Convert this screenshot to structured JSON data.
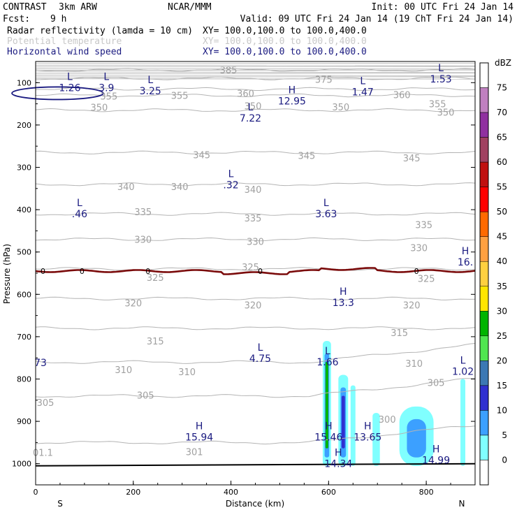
{
  "header": {
    "model": "CONTRAST",
    "run": "3km ARW",
    "org": "NCAR/MMM",
    "init": "Init: 00 UTC Fri 24 Jan 14",
    "fcst_label": "Fcst:",
    "fcst_value": "9 h",
    "valid": "Valid: 09 UTC Fri 24 Jan 14 (19 ChT Fri 24 Jan 14)",
    "fields": [
      {
        "name": "Radar reflectivity (lamda = 10 cm)",
        "xy": "XY= 100.0,100.0 to 100.0,400.0",
        "color": "#000000"
      },
      {
        "name": "Potential temperature",
        "xy": "XY= 100.0,100.0 to 100.0,400.0",
        "color": "#c8c8c8"
      },
      {
        "name": "Horizontal wind speed",
        "xy": "XY= 100.0,100.0 to 100.0,400.0",
        "color": "#1a1a80"
      }
    ]
  },
  "chart_data": {
    "type": "cross-section",
    "xlabel": "Distance (km)",
    "ylabel": "Pressure (hPa)",
    "xlim": [
      0,
      900
    ],
    "ylim": [
      1050,
      50
    ],
    "x_ticks": [
      0,
      200,
      400,
      600,
      800
    ],
    "y_ticks": [
      100,
      200,
      300,
      400,
      500,
      600,
      700,
      800,
      900,
      1000
    ],
    "x_end_labels": {
      "left": "S",
      "right": "N"
    },
    "colorbar": {
      "unit": "dBZ",
      "levels": [
        75,
        70,
        65,
        60,
        55,
        50,
        45,
        40,
        35,
        30,
        25,
        20,
        15,
        10,
        5,
        0
      ],
      "colors": [
        "#ffffff",
        "#c080c0",
        "#9030a0",
        "#a04060",
        "#c01010",
        "#ff0000",
        "#ff6a00",
        "#ffa040",
        "#ffd040",
        "#ffe600",
        "#00b400",
        "#50e650",
        "#3c78b4",
        "#3030d0",
        "#3ca0ff",
        "#80ffff",
        "#ffffff"
      ]
    },
    "theta_contours": [
      {
        "value": 385,
        "p": 70
      },
      {
        "value": 375,
        "p": 90
      },
      {
        "value": 360,
        "p": 115
      },
      {
        "value": 355,
        "p": 130
      },
      {
        "value": 350,
        "p": 165
      },
      {
        "value": 345,
        "p": 265
      },
      {
        "value": 340,
        "p": 340
      },
      {
        "value": 335,
        "p": 410
      },
      {
        "value": 330,
        "p": 470
      },
      {
        "value": 325,
        "p": 540
      },
      {
        "value": 320,
        "p": 610
      },
      {
        "value": 315,
        "p": 680
      },
      {
        "value": 310,
        "p": 760
      },
      {
        "value": 305,
        "p": 840
      },
      {
        "value": 301,
        "p": 950
      }
    ],
    "theta_labels": [
      {
        "text": "385",
        "x": 395,
        "p": 70
      },
      {
        "text": "375",
        "x": 590,
        "p": 92
      },
      {
        "text": "360",
        "x": 430,
        "p": 125
      },
      {
        "text": "355",
        "x": 150,
        "p": 132
      },
      {
        "text": "355",
        "x": 295,
        "p": 130
      },
      {
        "text": "355",
        "x": 823,
        "p": 150
      },
      {
        "text": "360",
        "x": 750,
        "p": 128
      },
      {
        "text": "350",
        "x": 130,
        "p": 158
      },
      {
        "text": "350",
        "x": 445,
        "p": 155
      },
      {
        "text": "350",
        "x": 625,
        "p": 157
      },
      {
        "text": "350",
        "x": 840,
        "p": 170
      },
      {
        "text": "345",
        "x": 340,
        "p": 270
      },
      {
        "text": "345",
        "x": 555,
        "p": 272
      },
      {
        "text": "345",
        "x": 770,
        "p": 278
      },
      {
        "text": "340",
        "x": 185,
        "p": 345
      },
      {
        "text": "340",
        "x": 295,
        "p": 345
      },
      {
        "text": "340",
        "x": 445,
        "p": 352
      },
      {
        "text": "335",
        "x": 220,
        "p": 405
      },
      {
        "text": "335",
        "x": 445,
        "p": 420
      },
      {
        "text": "335",
        "x": 795,
        "p": 435
      },
      {
        "text": "330",
        "x": 220,
        "p": 470
      },
      {
        "text": "330",
        "x": 450,
        "p": 475
      },
      {
        "text": "330",
        "x": 785,
        "p": 490
      },
      {
        "text": "325",
        "x": 440,
        "p": 535
      },
      {
        "text": "325",
        "x": 245,
        "p": 560
      },
      {
        "text": "325",
        "x": 800,
        "p": 562
      },
      {
        "text": "320",
        "x": 200,
        "p": 620
      },
      {
        "text": "320",
        "x": 445,
        "p": 625
      },
      {
        "text": "320",
        "x": 770,
        "p": 625
      },
      {
        "text": "315",
        "x": 245,
        "p": 710
      },
      {
        "text": "315",
        "x": 745,
        "p": 690
      },
      {
        "text": "310",
        "x": 180,
        "p": 778
      },
      {
        "text": "310",
        "x": 310,
        "p": 783
      },
      {
        "text": "310",
        "x": 775,
        "p": 763
      },
      {
        "text": "305",
        "x": 225,
        "p": 838
      },
      {
        "text": "305",
        "x": 820,
        "p": 808
      },
      {
        "text": "305",
        "x": 20,
        "p": 855
      },
      {
        "text": "301",
        "x": 325,
        "p": 972
      },
      {
        "text": "300",
        "x": 720,
        "p": 895
      },
      {
        "text": "01.1",
        "x": 15,
        "p": 973
      }
    ],
    "zero_line": {
      "label": "0",
      "p": 545
    },
    "wind_extrema": [
      {
        "type": "L",
        "value": "1.26",
        "x": 70,
        "p": 100
      },
      {
        "type": "L",
        "value": "3.9",
        "x": 145,
        "p": 100
      },
      {
        "type": "L",
        "value": "3.25",
        "x": 235,
        "p": 108
      },
      {
        "type": "H",
        "value": "12.95",
        "x": 525,
        "p": 132
      },
      {
        "type": "L",
        "value": "1.47",
        "x": 670,
        "p": 110
      },
      {
        "type": "L",
        "value": "1.53",
        "x": 830,
        "p": 80
      },
      {
        "type": "L",
        "value": "7.22",
        "x": 440,
        "p": 172
      },
      {
        "type": "L",
        "value": ".32",
        "x": 400,
        "p": 330
      },
      {
        "type": "L",
        "value": ".46",
        "x": 90,
        "p": 398
      },
      {
        "type": "L",
        "value": "3.63",
        "x": 595,
        "p": 398
      },
      {
        "type": "H",
        "value": "16.",
        "x": 880,
        "p": 512
      },
      {
        "type": "H",
        "value": "13.3",
        "x": 630,
        "p": 608
      },
      {
        "type": "L",
        "value": "4.75",
        "x": 460,
        "p": 740
      },
      {
        "type": "L",
        "value": "1.66",
        "x": 598,
        "p": 748
      },
      {
        "type": "L",
        "value": "1.02",
        "x": 875,
        "p": 770
      },
      {
        "type": "H",
        "value": "15.94",
        "x": 335,
        "p": 925
      },
      {
        "type": "H",
        "value": "15.46",
        "x": 600,
        "p": 925
      },
      {
        "type": "H",
        "value": "13.65",
        "x": 680,
        "p": 925
      },
      {
        "type": "H",
        "value": "14.34",
        "x": 620,
        "p": 988
      },
      {
        "type": "H",
        "value": "14.99",
        "x": 820,
        "p": 980
      },
      {
        "type": "",
        "value": "73",
        "x": 10,
        "p": 750
      }
    ],
    "reflectivity_cells": [
      {
        "x": [
          588,
          605
        ],
        "p_top": 710,
        "dbz": 30
      },
      {
        "x": [
          620,
          640
        ],
        "p_top": 790,
        "dbz": 15
      },
      {
        "x": [
          645,
          655
        ],
        "p_top": 815,
        "dbz": 5
      },
      {
        "x": [
          690,
          705
        ],
        "p_top": 880,
        "dbz": 5
      },
      {
        "x": [
          745,
          815
        ],
        "p_top": 865,
        "dbz": 10
      },
      {
        "x": [
          870,
          880
        ],
        "p_top": 800,
        "dbz": 5
      }
    ]
  }
}
